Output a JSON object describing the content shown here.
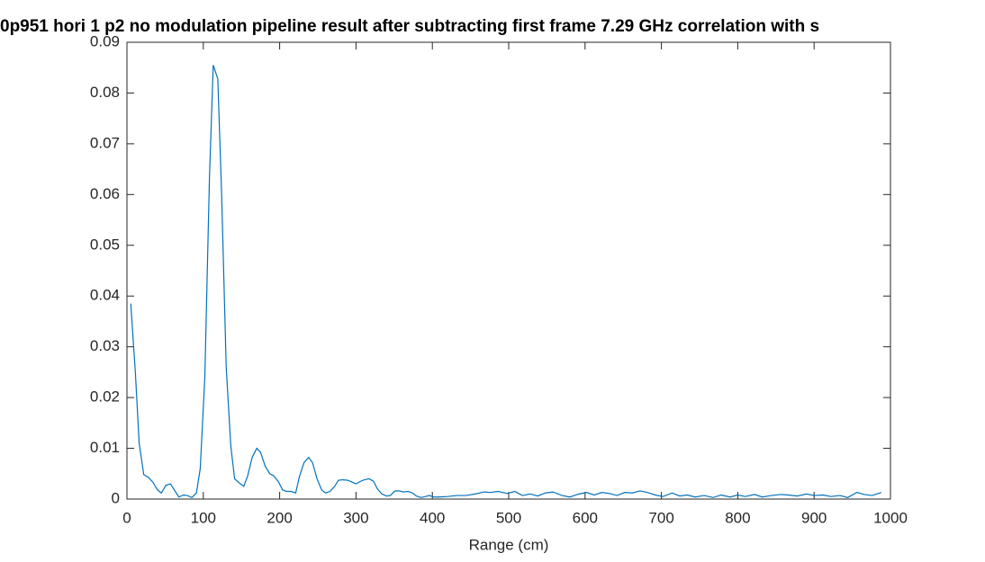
{
  "chart_data": {
    "type": "line",
    "title": "0p951 hori 1 p2 no modulation pipeline result after subtracting first frame 7.29 GHz correlation with s",
    "x_label": "Range (cm)",
    "xlim": [
      0,
      1000
    ],
    "ylim": [
      0,
      0.09
    ],
    "xticks": [
      0,
      100,
      200,
      300,
      400,
      500,
      600,
      700,
      800,
      900,
      1000
    ],
    "yticks": [
      0,
      0.01,
      0.02,
      0.03,
      0.04,
      0.05,
      0.06,
      0.07,
      0.08,
      0.09
    ],
    "grid": false,
    "series": [
      {
        "color": "#0072bd",
        "x": [
          5,
          11,
          16,
          22,
          28,
          34,
          40,
          45,
          51,
          57,
          62,
          68,
          74,
          79,
          85,
          91,
          96,
          102,
          108,
          113,
          119,
          124,
          130,
          136,
          141,
          147,
          153,
          158,
          164,
          170,
          175,
          181,
          187,
          192,
          198,
          204,
          209,
          215,
          221,
          226,
          232,
          238,
          243,
          249,
          255,
          260,
          266,
          272,
          277,
          283,
          289,
          294,
          300,
          306,
          311,
          317,
          323,
          328,
          334,
          340,
          345,
          351,
          357,
          362,
          368,
          374,
          379,
          385,
          391,
          396,
          402,
          408,
          420,
          432,
          444,
          456,
          468,
          476,
          486,
          498,
          508,
          518,
          528,
          538,
          548,
          558,
          570,
          580,
          592,
          602,
          612,
          622,
          632,
          642,
          652,
          662,
          672,
          682,
          692,
          702,
          714,
          724,
          734,
          744,
          756,
          768,
          778,
          790,
          800,
          810,
          822,
          832,
          844,
          856,
          866,
          878,
          890,
          900,
          912,
          922,
          934,
          944,
          956,
          966,
          976,
          988
        ],
        "values": [
          0.0385,
          0.025,
          0.011,
          0.0048,
          0.0043,
          0.0033,
          0.0018,
          0.0012,
          0.0027,
          0.003,
          0.0018,
          0.0004,
          0.0008,
          0.0007,
          0.0003,
          0.0012,
          0.006,
          0.024,
          0.063,
          0.0855,
          0.0828,
          0.06,
          0.026,
          0.0105,
          0.004,
          0.0032,
          0.0025,
          0.0045,
          0.0082,
          0.01,
          0.0092,
          0.0065,
          0.005,
          0.0046,
          0.0035,
          0.0018,
          0.0015,
          0.0015,
          0.0012,
          0.0045,
          0.0072,
          0.0082,
          0.0072,
          0.004,
          0.0018,
          0.0012,
          0.0015,
          0.0025,
          0.0037,
          0.0038,
          0.0037,
          0.0034,
          0.003,
          0.0035,
          0.0038,
          0.004,
          0.0035,
          0.002,
          0.001,
          0.0006,
          0.0007,
          0.0016,
          0.0016,
          0.0014,
          0.0015,
          0.0012,
          0.0006,
          0.0003,
          0.0005,
          0.0007,
          0.0004,
          0.0004,
          0.0005,
          0.0007,
          0.0007,
          0.001,
          0.0014,
          0.0013,
          0.0015,
          0.0011,
          0.0015,
          0.0007,
          0.001,
          0.0006,
          0.0012,
          0.0014,
          0.0007,
          0.0004,
          0.001,
          0.0013,
          0.0008,
          0.0013,
          0.0011,
          0.0007,
          0.0013,
          0.0012,
          0.0016,
          0.0013,
          0.0008,
          0.0005,
          0.0012,
          0.0006,
          0.0008,
          0.0004,
          0.0007,
          0.0003,
          0.0008,
          0.0004,
          0.0008,
          0.0005,
          0.0009,
          0.0004,
          0.0007,
          0.0009,
          0.0008,
          0.0006,
          0.001,
          0.0007,
          0.0008,
          0.0005,
          0.0007,
          0.0003,
          0.0013,
          0.0009,
          0.0007,
          0.0013
        ]
      }
    ]
  }
}
